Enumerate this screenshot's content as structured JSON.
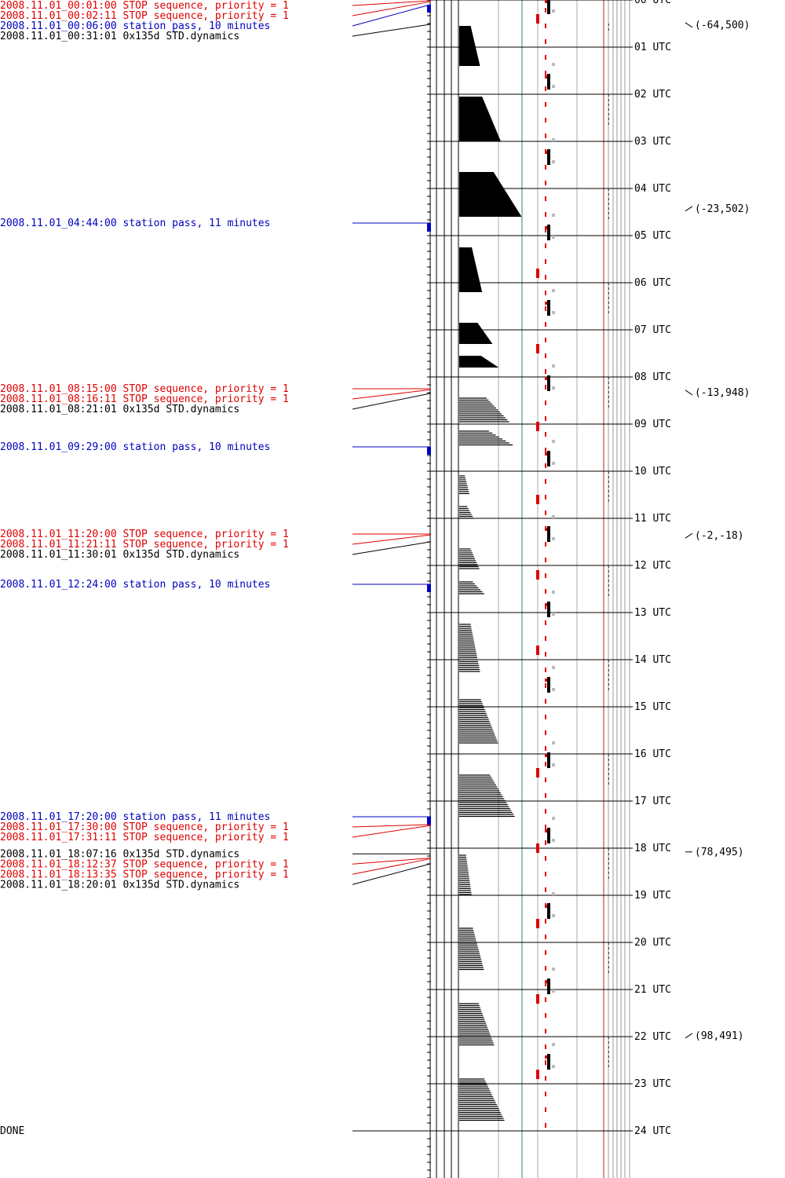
{
  "colors": {
    "stop": "#e00000",
    "pass": "#0000c0",
    "dynamics": "#000000",
    "green_rule": "#2e8b57",
    "red_rule": "#b22222",
    "grid": "#999999"
  },
  "events": [
    {
      "text": "2008.11.01_00:01:00 STOP sequence, priority = 1",
      "kind": "stop",
      "hour": 0.0167
    },
    {
      "text": "2008.11.01_00:02:11 STOP sequence, priority = 1",
      "kind": "stop",
      "hour": 0.0364
    },
    {
      "text": "2008.11.01_00:06:00 station pass, 10 minutes",
      "kind": "pass",
      "hour": 0.1,
      "duration_min": 10
    },
    {
      "text": "2008.11.01_00:31:01 0x135d STD.dynamics",
      "kind": "dynamics",
      "hour": 0.517
    },
    {
      "text": "2008.11.01_04:44:00 station pass, 11 minutes",
      "kind": "pass",
      "hour": 4.733,
      "duration_min": 11
    },
    {
      "text": "2008.11.01_08:15:00 STOP sequence, priority = 1",
      "kind": "stop",
      "hour": 8.25
    },
    {
      "text": "2008.11.01_08:16:11 STOP sequence, priority = 1",
      "kind": "stop",
      "hour": 8.27
    },
    {
      "text": "2008.11.01_08:21:01 0x135d STD.dynamics",
      "kind": "dynamics",
      "hour": 8.35
    },
    {
      "text": "2008.11.01_09:29:00 station pass, 10 minutes",
      "kind": "pass",
      "hour": 9.483,
      "duration_min": 10
    },
    {
      "text": "2008.11.01_11:20:00 STOP sequence, priority = 1",
      "kind": "stop",
      "hour": 11.333
    },
    {
      "text": "2008.11.01_11:21:11 STOP sequence, priority = 1",
      "kind": "stop",
      "hour": 11.353
    },
    {
      "text": "2008.11.01_11:30:01 0x135d STD.dynamics",
      "kind": "dynamics",
      "hour": 11.5
    },
    {
      "text": "2008.11.01_12:24:00 station pass, 10 minutes",
      "kind": "pass",
      "hour": 12.4,
      "duration_min": 10
    },
    {
      "text": "2008.11.01_17:20:00 station pass, 11 minutes",
      "kind": "pass",
      "hour": 17.333,
      "duration_min": 11
    },
    {
      "text": "2008.11.01_17:30:00 STOP sequence, priority = 1",
      "kind": "stop",
      "hour": 17.5
    },
    {
      "text": "2008.11.01_17:31:11 STOP sequence, priority = 1",
      "kind": "stop",
      "hour": 17.52
    },
    {
      "text": "2008.11.01_18:07:16 0x135d STD.dynamics",
      "kind": "dynamics",
      "hour": 18.121
    },
    {
      "text": "2008.11.01_18:12:37 STOP sequence, priority = 1",
      "kind": "stop",
      "hour": 18.21
    },
    {
      "text": "2008.11.01_18:13:35 STOP sequence, priority = 1",
      "kind": "stop",
      "hour": 18.226
    },
    {
      "text": "2008.11.01_18:20:01 0x135d STD.dynamics",
      "kind": "dynamics",
      "hour": 18.334
    },
    {
      "text": "DONE",
      "kind": "done",
      "hour": 24
    }
  ],
  "hour_labels": [
    "00 UTC",
    "01 UTC",
    "02 UTC",
    "03 UTC",
    "04 UTC",
    "05 UTC",
    "06 UTC",
    "07 UTC",
    "08 UTC",
    "09 UTC",
    "10 UTC",
    "11 UTC",
    "12 UTC",
    "13 UTC",
    "14 UTC",
    "15 UTC",
    "16 UTC",
    "17 UTC",
    "18 UTC",
    "19 UTC",
    "20 UTC",
    "21 UTC",
    "22 UTC",
    "23 UTC",
    "24 UTC"
  ],
  "attitude_notes": [
    {
      "text": "(-64,500)",
      "hour": 0.53,
      "dir": "down"
    },
    {
      "text": "(-23,502)",
      "hour": 4.43,
      "dir": "up"
    },
    {
      "text": "(-13,948)",
      "hour": 8.33,
      "dir": "down"
    },
    {
      "text": "(-2,-18)",
      "hour": 11.37,
      "dir": "up"
    },
    {
      "text": "(78,495)",
      "hour": 18.08,
      "dir": "flat"
    },
    {
      "text": "(98,491)",
      "hour": 21.98,
      "dir": "up"
    }
  ],
  "chart_data": {
    "type": "timeline",
    "x_unit": "hour (UTC)",
    "range": [
      0,
      24
    ],
    "activity_blocks": [
      {
        "start": 0.55,
        "end": 1.4,
        "max": 0.5,
        "style": "solid"
      },
      {
        "start": 2.05,
        "end": 3.0,
        "max": 1.0,
        "style": "solid"
      },
      {
        "start": 3.65,
        "end": 4.6,
        "max": 1.5,
        "style": "solid"
      },
      {
        "start": 5.25,
        "end": 6.2,
        "max": 0.55,
        "style": "solid"
      },
      {
        "start": 6.85,
        "end": 7.3,
        "max": 0.8,
        "style": "solid"
      },
      {
        "start": 7.55,
        "end": 7.8,
        "max": 0.95,
        "style": "solid"
      },
      {
        "start": 8.45,
        "end": 8.95,
        "max": 1.2,
        "style": "hatched"
      },
      {
        "start": 9.15,
        "end": 9.45,
        "max": 1.3,
        "style": "hatched"
      },
      {
        "start": 10.1,
        "end": 10.5,
        "max": 0.25,
        "style": "hatched"
      },
      {
        "start": 10.75,
        "end": 11.0,
        "max": 0.35,
        "style": "hatched"
      },
      {
        "start": 11.65,
        "end": 12.1,
        "max": 0.5,
        "style": "hatched"
      },
      {
        "start": 12.35,
        "end": 12.6,
        "max": 0.6,
        "style": "hatched"
      },
      {
        "start": 13.25,
        "end": 14.25,
        "max": 0.5,
        "style": "hatched"
      },
      {
        "start": 14.85,
        "end": 15.8,
        "max": 0.95,
        "style": "hatched"
      },
      {
        "start": 16.45,
        "end": 17.35,
        "max": 1.35,
        "style": "hatched"
      },
      {
        "start": 18.15,
        "end": 19.0,
        "max": 0.3,
        "style": "hatched"
      },
      {
        "start": 19.7,
        "end": 20.6,
        "max": 0.6,
        "style": "hatched"
      },
      {
        "start": 21.3,
        "end": 22.2,
        "max": 0.85,
        "style": "hatched"
      },
      {
        "start": 22.9,
        "end": 23.8,
        "max": 1.1,
        "style": "hatched"
      }
    ]
  }
}
